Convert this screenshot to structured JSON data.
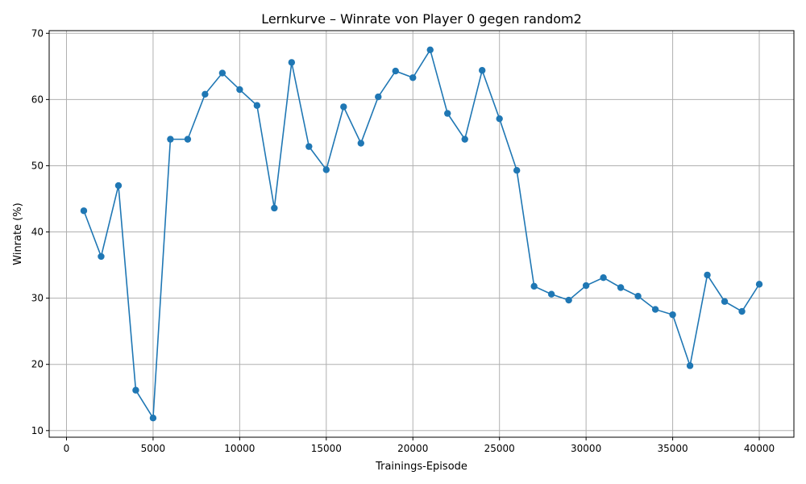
{
  "chart_data": {
    "type": "line",
    "title": "Lernkurve – Winrate von Player 0 gegen random2",
    "xlabel": "Trainings-Episode",
    "ylabel": "Winrate (%)",
    "xlim": [
      -1000,
      42000
    ],
    "ylim": [
      9,
      70.4
    ],
    "xticks": [
      0,
      5000,
      10000,
      15000,
      20000,
      25000,
      30000,
      35000,
      40000
    ],
    "yticks": [
      10,
      20,
      30,
      40,
      50,
      60,
      70
    ],
    "grid": true,
    "color": "#1f77b4",
    "x": [
      1000,
      2000,
      3000,
      4000,
      5000,
      6000,
      7000,
      8000,
      9000,
      10000,
      11000,
      12000,
      13000,
      14000,
      15000,
      16000,
      17000,
      18000,
      19000,
      20000,
      21000,
      22000,
      23000,
      24000,
      25000,
      26000,
      27000,
      28000,
      29000,
      30000,
      31000,
      32000,
      33000,
      34000,
      35000,
      36000,
      37000,
      38000,
      39000,
      40000
    ],
    "y": [
      43.2,
      36.3,
      47.0,
      16.1,
      11.9,
      54.0,
      54.0,
      60.8,
      64.0,
      61.5,
      59.1,
      43.6,
      65.6,
      52.9,
      49.4,
      58.9,
      53.4,
      60.4,
      64.3,
      63.3,
      67.5,
      57.9,
      54.0,
      64.4,
      57.1,
      49.3,
      31.8,
      30.6,
      29.7,
      31.9,
      33.1,
      31.6,
      30.3,
      28.3,
      27.5,
      19.8,
      33.5,
      29.5,
      28.0,
      32.1
    ]
  }
}
